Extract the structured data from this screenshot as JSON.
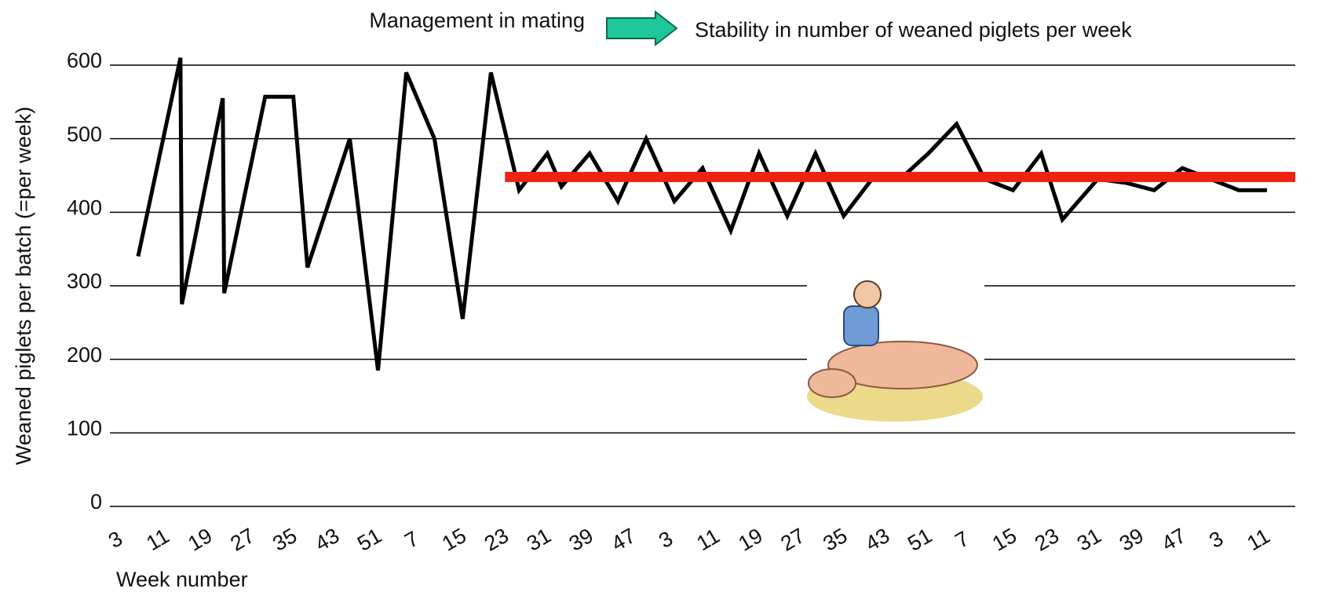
{
  "chart_data": {
    "type": "line",
    "annotations": [
      "Management in mating",
      "Stability in number of weaned piglets per week"
    ],
    "y_label": "Weaned piglets per batch (=per week)",
    "x_label": "Week number",
    "xlim": [
      0,
      84
    ],
    "xticks": [
      {
        "value": 0,
        "label": "3"
      },
      {
        "value": 3,
        "label": "11"
      },
      {
        "value": 6,
        "label": "19"
      },
      {
        "value": 9,
        "label": "27"
      },
      {
        "value": 12,
        "label": "35"
      },
      {
        "value": 15,
        "label": "43"
      },
      {
        "value": 18,
        "label": "51"
      },
      {
        "value": 21,
        "label": "7"
      },
      {
        "value": 24,
        "label": "15"
      },
      {
        "value": 27,
        "label": "23"
      },
      {
        "value": 30,
        "label": "31"
      },
      {
        "value": 33,
        "label": "39"
      },
      {
        "value": 36,
        "label": "47"
      },
      {
        "value": 39,
        "label": "3"
      },
      {
        "value": 42,
        "label": "11"
      },
      {
        "value": 45,
        "label": "19"
      },
      {
        "value": 48,
        "label": "27"
      },
      {
        "value": 51,
        "label": "35"
      },
      {
        "value": 54,
        "label": "43"
      },
      {
        "value": 57,
        "label": "51"
      },
      {
        "value": 60,
        "label": "7"
      },
      {
        "value": 63,
        "label": "15"
      },
      {
        "value": 66,
        "label": "23"
      },
      {
        "value": 69,
        "label": "31"
      },
      {
        "value": 72,
        "label": "39"
      },
      {
        "value": 75,
        "label": "47"
      },
      {
        "value": 78,
        "label": "3"
      },
      {
        "value": 81,
        "label": "11"
      }
    ],
    "ylim": [
      0,
      600
    ],
    "yticks": [
      0,
      100,
      200,
      300,
      400,
      500,
      600
    ],
    "grid": true,
    "series": [
      {
        "color": "#000000",
        "x": [
          2,
          5,
          5.1,
          8,
          8.1,
          11,
          13,
          14,
          17,
          19,
          21,
          23,
          25,
          27,
          29,
          31,
          32,
          34,
          36,
          38,
          40,
          42,
          44,
          46,
          48,
          50,
          52,
          54,
          56,
          58,
          60,
          62,
          64,
          66,
          67.5,
          70,
          72,
          74,
          76,
          78,
          80,
          82
        ],
        "values": [
          340,
          610,
          275,
          555,
          290,
          557,
          557,
          325,
          500,
          185,
          590,
          500,
          255,
          590,
          430,
          480,
          435,
          480,
          415,
          500,
          415,
          460,
          375,
          480,
          395,
          480,
          395,
          445,
          445,
          480,
          520,
          445,
          430,
          480,
          390,
          445,
          440,
          430,
          460,
          445,
          430,
          430
        ]
      },
      {
        "color": "#ee2211",
        "x": [
          28,
          84
        ],
        "values": [
          448,
          448
        ]
      }
    ]
  }
}
